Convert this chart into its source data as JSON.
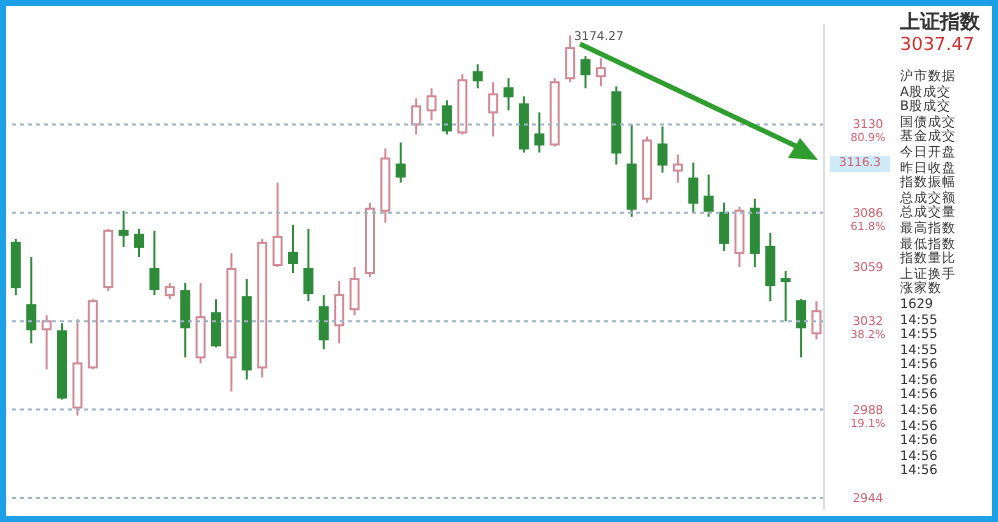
{
  "chart_data": {
    "type": "candlestick",
    "title": "上证指数",
    "categories": [
      null,
      null,
      null,
      null,
      null,
      null,
      null,
      null,
      null,
      null,
      null,
      null,
      null,
      null,
      null,
      null,
      null,
      null,
      null,
      null,
      null,
      null,
      null,
      null,
      null,
      null,
      null,
      null,
      null,
      null,
      null,
      null,
      null,
      null,
      null,
      null,
      null,
      null,
      null,
      null,
      null,
      null,
      null,
      null,
      null,
      null,
      null,
      null,
      null,
      null,
      null,
      null,
      null
    ],
    "ohlc": [
      [
        3071,
        3073,
        3045,
        3049
      ],
      [
        3040,
        3064,
        3021,
        3028
      ],
      [
        3028,
        3035,
        3008,
        3032
      ],
      [
        3027,
        3031,
        2993,
        2994
      ],
      [
        2989,
        3033,
        2985,
        3011
      ],
      [
        3009,
        3043,
        3008,
        3042
      ],
      [
        3049,
        3078,
        3047,
        3077
      ],
      [
        3077,
        3087,
        3069,
        3075
      ],
      [
        3075,
        3078,
        3064,
        3069
      ],
      [
        3058,
        3077,
        3045,
        3048
      ],
      [
        3045,
        3051,
        3043,
        3049
      ],
      [
        3047,
        3051,
        3014,
        3029
      ],
      [
        3014,
        3051,
        3011,
        3034
      ],
      [
        3036,
        3043,
        3019,
        3020
      ],
      [
        3014,
        3066,
        2997,
        3058
      ],
      [
        3044,
        3053,
        3003,
        3008
      ],
      [
        3009,
        3073,
        3004,
        3071
      ],
      [
        3060,
        3101,
        3059,
        3074
      ],
      [
        3066,
        3080,
        3056,
        3061
      ],
      [
        3058,
        3078,
        3042,
        3046
      ],
      [
        3039,
        3045,
        3018,
        3023
      ],
      [
        3030,
        3052,
        3021,
        3045
      ],
      [
        3038,
        3059,
        3035,
        3053
      ],
      [
        3056,
        3091,
        3054,
        3088
      ],
      [
        3087,
        3118,
        3081,
        3113
      ],
      [
        3110,
        3121,
        3101,
        3104
      ],
      [
        3130,
        3143,
        3125,
        3139
      ],
      [
        3137,
        3148,
        3132,
        3144
      ],
      [
        3139,
        3142,
        3125,
        3127
      ],
      [
        3126,
        3155,
        3125,
        3152
      ],
      [
        3156,
        3160,
        3148,
        3152
      ],
      [
        3136,
        3151,
        3124,
        3145
      ],
      [
        3148,
        3153,
        3137,
        3144
      ],
      [
        3140,
        3144,
        3116,
        3118
      ],
      [
        3125,
        3136,
        3116,
        3120
      ],
      [
        3120,
        3153,
        3119,
        3151
      ],
      [
        3153,
        3174.27,
        3151,
        3168
      ],
      [
        3162,
        3164,
        3148,
        3155
      ],
      [
        3154,
        3163,
        3149,
        3158
      ],
      [
        3146,
        3149,
        3110,
        3116
      ],
      [
        3110,
        3130,
        3084,
        3088
      ],
      [
        3093,
        3124,
        3091,
        3122
      ],
      [
        3120,
        3129,
        3106,
        3110
      ],
      [
        3107,
        3115,
        3101,
        3110
      ],
      [
        3103,
        3111,
        3086,
        3091
      ],
      [
        3094,
        3105,
        3084,
        3087
      ],
      [
        3086,
        3091,
        3067,
        3071
      ],
      [
        3066,
        3089,
        3059,
        3087
      ],
      [
        3088,
        3093,
        3059,
        3066
      ],
      [
        3069,
        3076,
        3042,
        3050
      ],
      [
        3053,
        3057,
        3032,
        3052
      ],
      [
        3042,
        3043,
        3014,
        3029
      ],
      [
        3026,
        3042,
        3023,
        3037
      ]
    ],
    "colors": [
      "#2e8b3a",
      "#2e8b3a",
      "#d08a96",
      "#2e8b3a",
      "#d08a96",
      "#d08a96",
      "#d08a96",
      "#2e8b3a",
      "#2e8b3a",
      "#2e8b3a",
      "#d08a96",
      "#2e8b3a",
      "#d08a96",
      "#2e8b3a",
      "#d08a96",
      "#2e8b3a",
      "#d08a96",
      "#d08a96",
      "#2e8b3a",
      "#2e8b3a",
      "#2e8b3a",
      "#d08a96",
      "#d08a96",
      "#d08a96",
      "#d08a96",
      "#2e8b3a",
      "#d08a96",
      "#d08a96",
      "#2e8b3a",
      "#d08a96",
      "#2e8b3a",
      "#d08a96",
      "#2e8b3a",
      "#2e8b3a",
      "#2e8b3a",
      "#d08a96",
      "#d08a96",
      "#2e8b3a",
      "#d08a96",
      "#2e8b3a",
      "#2e8b3a",
      "#d08a96",
      "#2e8b3a",
      "#d08a96",
      "#2e8b3a",
      "#2e8b3a",
      "#2e8b3a",
      "#d08a96",
      "#2e8b3a",
      "#2e8b3a",
      "#2e8b3a",
      "#2e8b3a",
      "#d08a96"
    ],
    "ylim": [
      2938,
      3180
    ],
    "yticks": [
      {
        "value": 3130,
        "label": "3130 80.9%"
      },
      {
        "value": 3086,
        "label": "3086 61.8%"
      },
      3059,
      {
        "value": 3032,
        "label": "3032 38.2%"
      },
      {
        "value": 2988,
        "label": "2988 19.1%"
      },
      2944
    ],
    "ref_lines": [
      {
        "axis": "y",
        "value": 3130,
        "color": "#9fb3c8",
        "line_style": "dotted"
      },
      {
        "axis": "y",
        "value": 3086,
        "color": "#9fb3c8",
        "line_style": "dotted"
      },
      {
        "axis": "y",
        "value": 3032,
        "color": "#9fb3c8",
        "line_style": "dotted"
      },
      {
        "axis": "y",
        "value": 2988,
        "color": "#9fb3c8",
        "line_style": "dotted"
      },
      {
        "axis": "y",
        "value": 2944,
        "color": "#9fb3c8",
        "line_style": "dotted"
      }
    ],
    "annotations": [
      "3174.27",
      "3116.3",
      "3037.47",
      "沪市数据",
      "A股成交",
      "B股成交",
      "国债成交",
      "基金成交",
      "今日开盘",
      "昨日收盘",
      "指数振幅",
      "总成交额",
      "总成交量",
      "最高指数",
      "最低指数",
      "指数量比",
      "上证换手",
      "涨家数",
      "1629",
      "14:55",
      "14:55",
      "14:55",
      "14:56",
      "14:56",
      "14:56",
      "14:56",
      "14:56",
      "14:56",
      "14:56",
      "14:56"
    ]
  }
}
